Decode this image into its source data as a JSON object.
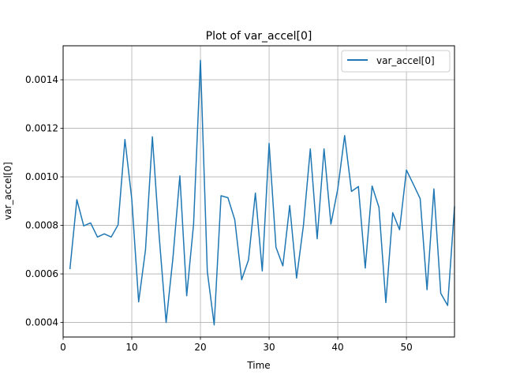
{
  "chart_data": {
    "type": "line",
    "title": "Plot of var_accel[0]",
    "xlabel": "Time",
    "ylabel": "var_accel[0]",
    "xlim": [
      0,
      57
    ],
    "ylim": [
      0.00034,
      0.00154
    ],
    "grid": true,
    "legend_position": "top-right",
    "x_ticks": [
      0,
      10,
      20,
      30,
      40,
      50
    ],
    "x_tick_labels": [
      "0",
      "10",
      "20",
      "30",
      "40",
      "50"
    ],
    "y_ticks": [
      0.0004,
      0.0006,
      0.0008,
      0.001,
      0.0012,
      0.0014
    ],
    "y_tick_labels": [
      "0.0004",
      "0.0006",
      "0.0008",
      "0.0010",
      "0.0012",
      "0.0014"
    ],
    "series": [
      {
        "name": "var_accel[0]",
        "color": "#1f77b4",
        "x": [
          1,
          2,
          3,
          4,
          5,
          6,
          7,
          8,
          9,
          10,
          11,
          12,
          13,
          14,
          15,
          16,
          17,
          18,
          19,
          20,
          21,
          22,
          23,
          24,
          25,
          26,
          27,
          28,
          29,
          30,
          31,
          32,
          33,
          34,
          35,
          36,
          37,
          38,
          39,
          40,
          41,
          42,
          43,
          44,
          45,
          46,
          47,
          48,
          49,
          50,
          51,
          52,
          53,
          54,
          55,
          56,
          57
        ],
        "y": [
          0.000622,
          0.000906,
          0.000798,
          0.00081,
          0.000752,
          0.000765,
          0.000752,
          0.000802,
          0.001154,
          0.000908,
          0.000485,
          0.0007,
          0.001165,
          0.000752,
          0.0004,
          0.000668,
          0.001004,
          0.00051,
          0.000805,
          0.00148,
          0.00061,
          0.00039,
          0.000922,
          0.000914,
          0.000823,
          0.000576,
          0.000658,
          0.000933,
          0.000612,
          0.001138,
          0.00071,
          0.000633,
          0.000882,
          0.000583,
          0.0008,
          0.001115,
          0.000745,
          0.001115,
          0.000805,
          0.00095,
          0.00117,
          0.00094,
          0.00096,
          0.000624,
          0.000962,
          0.000874,
          0.000482,
          0.000852,
          0.000782,
          0.001028,
          0.00097,
          0.00091,
          0.000535,
          0.00095,
          0.00052,
          0.00047,
          0.000876
        ]
      }
    ]
  }
}
